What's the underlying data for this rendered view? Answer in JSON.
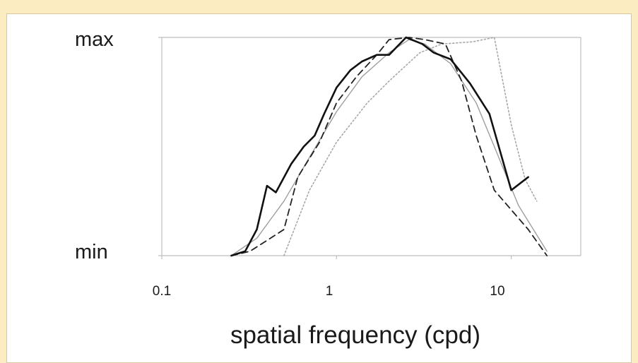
{
  "colors": {
    "page_background": "#fcecc2",
    "panel_background": "#ffffff",
    "axis": "#bdbdbd",
    "series_1": "#111111",
    "series_2": "#222222",
    "series_3": "#9e9e9e",
    "series_4": "#a8a8a8"
  },
  "chart_data": {
    "type": "line",
    "title": "",
    "xlabel": "spatial frequency (cpd)",
    "ylabel": "",
    "x_scale": "log",
    "xlim": [
      0.1,
      25
    ],
    "ylim": [
      0,
      1
    ],
    "x_ticks": [
      {
        "value": 0.1,
        "label": "0.1"
      },
      {
        "value": 1,
        "label": "1"
      },
      {
        "value": 10,
        "label": "10"
      }
    ],
    "y_ticks": [
      {
        "value": 0,
        "label": "min"
      },
      {
        "value": 1,
        "label": "max"
      }
    ],
    "grid": false,
    "legend": "none",
    "series": [
      {
        "style": "solid-thick",
        "color": "#111111",
        "points": [
          [
            0.25,
            0.0
          ],
          [
            0.3,
            0.02
          ],
          [
            0.35,
            0.12
          ],
          [
            0.4,
            0.32
          ],
          [
            0.45,
            0.29
          ],
          [
            0.55,
            0.42
          ],
          [
            0.65,
            0.5
          ],
          [
            0.75,
            0.55
          ],
          [
            0.85,
            0.65
          ],
          [
            1.0,
            0.77
          ],
          [
            1.2,
            0.85
          ],
          [
            1.4,
            0.89
          ],
          [
            1.7,
            0.92
          ],
          [
            2.0,
            0.92
          ],
          [
            2.5,
            1.0
          ],
          [
            3.1,
            0.97
          ],
          [
            3.6,
            0.93
          ],
          [
            4.5,
            0.9
          ],
          [
            5.8,
            0.79
          ],
          [
            7.5,
            0.65
          ],
          [
            10.0,
            0.3
          ],
          [
            12.5,
            0.36
          ]
        ]
      },
      {
        "style": "dashed",
        "color": "#222222",
        "points": [
          [
            0.25,
            0.0
          ],
          [
            0.32,
            0.02
          ],
          [
            0.4,
            0.07
          ],
          [
            0.5,
            0.12
          ],
          [
            0.6,
            0.36
          ],
          [
            0.8,
            0.52
          ],
          [
            1.0,
            0.7
          ],
          [
            1.3,
            0.82
          ],
          [
            1.7,
            0.92
          ],
          [
            2.0,
            0.99
          ],
          [
            2.6,
            1.0
          ],
          [
            3.2,
            0.99
          ],
          [
            4.2,
            0.97
          ],
          [
            5.2,
            0.8
          ],
          [
            6.3,
            0.55
          ],
          [
            8.0,
            0.3
          ],
          [
            10.0,
            0.21
          ],
          [
            12.5,
            0.12
          ],
          [
            16.0,
            0.0
          ]
        ]
      },
      {
        "style": "solid-thin",
        "color": "#9e9e9e",
        "points": [
          [
            0.25,
            0.0
          ],
          [
            0.35,
            0.08
          ],
          [
            0.5,
            0.25
          ],
          [
            0.7,
            0.45
          ],
          [
            1.0,
            0.66
          ],
          [
            1.4,
            0.82
          ],
          [
            2.0,
            0.93
          ],
          [
            2.6,
            0.99
          ],
          [
            3.2,
            0.97
          ],
          [
            4.5,
            0.88
          ],
          [
            6.3,
            0.7
          ],
          [
            8.0,
            0.5
          ],
          [
            11.0,
            0.23
          ],
          [
            16.0,
            0.02
          ]
        ]
      },
      {
        "style": "dotted",
        "color": "#a8a8a8",
        "points": [
          [
            0.5,
            0.0
          ],
          [
            0.7,
            0.3
          ],
          [
            1.0,
            0.52
          ],
          [
            1.5,
            0.7
          ],
          [
            2.0,
            0.8
          ],
          [
            3.0,
            0.93
          ],
          [
            4.0,
            0.97
          ],
          [
            6.0,
            0.98
          ],
          [
            8.0,
            1.0
          ],
          [
            10.0,
            0.6
          ],
          [
            12.0,
            0.35
          ],
          [
            14.0,
            0.25
          ]
        ]
      }
    ]
  }
}
